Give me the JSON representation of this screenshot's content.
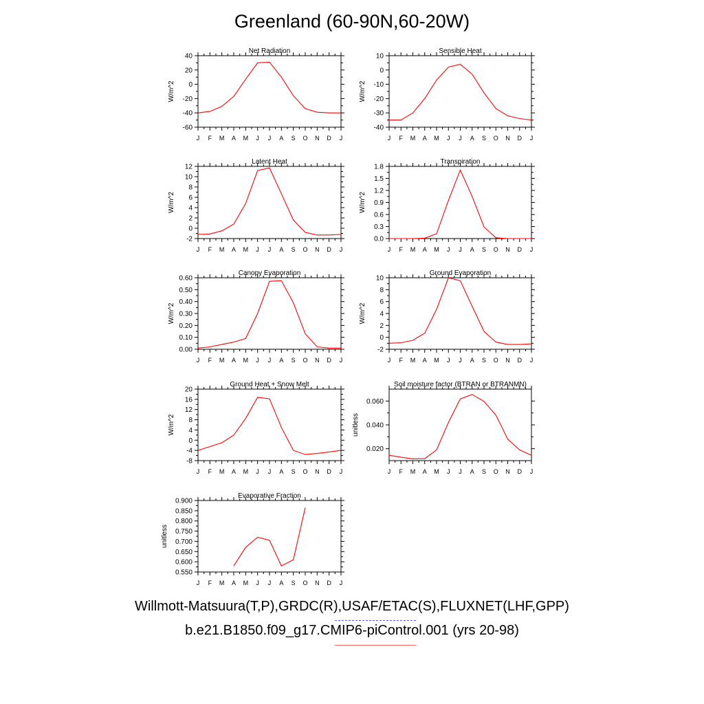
{
  "title": "Greenland (60-90N,60-20W)",
  "caption_obs": "Willmott-Matsuura(T,P),GRDC(R),USAF/ETAC(S),FLUXNET(LHF,GPP)",
  "caption_model": "b.e21.B1850.f09_g17.CMIP6-piControl.001 (yrs 20-98)",
  "colors": {
    "model_line": "#ff0000",
    "obs_line": "#5a5aff",
    "axis": "#000000"
  },
  "chart_data": [
    {
      "type": "line",
      "title": "Net Radiation",
      "ylabel": "W/m^2",
      "x": [
        "J",
        "F",
        "M",
        "A",
        "M",
        "J",
        "J",
        "A",
        "S",
        "O",
        "N",
        "D",
        "J"
      ],
      "ylim": [
        -60,
        40
      ],
      "yticks": [
        "40",
        "20",
        "0",
        "-20",
        "-40",
        "-60"
      ],
      "ytick_values": [
        40,
        20,
        0,
        -20,
        -40,
        -60
      ],
      "series": [
        {
          "values": [
            -40,
            -38,
            -31,
            -17,
            7,
            30,
            31,
            10,
            -16,
            -34,
            -39,
            -40,
            -40
          ]
        }
      ]
    },
    {
      "type": "line",
      "title": "Sensible Heat",
      "ylabel": "W/m^2",
      "x": [
        "J",
        "F",
        "M",
        "A",
        "M",
        "J",
        "J",
        "A",
        "S",
        "O",
        "N",
        "D",
        "J"
      ],
      "ylim": [
        -40,
        10
      ],
      "yticks": [
        "10",
        "0",
        "-10",
        "-20",
        "-30",
        "-40"
      ],
      "ytick_values": [
        10,
        0,
        -10,
        -20,
        -30,
        -40
      ],
      "series": [
        {
          "values": [
            -35,
            -35,
            -30,
            -20,
            -7,
            2,
            4,
            -3,
            -16,
            -27,
            -32,
            -34,
            -35
          ]
        }
      ]
    },
    {
      "type": "line",
      "title": "Latent Heat",
      "ylabel": "W/m^2",
      "x": [
        "J",
        "F",
        "M",
        "A",
        "M",
        "J",
        "J",
        "A",
        "S",
        "O",
        "N",
        "D",
        "J"
      ],
      "ylim": [
        -2,
        12
      ],
      "yticks": [
        "12",
        "10",
        "8",
        "6",
        "4",
        "2",
        "0",
        "-2"
      ],
      "ytick_values": [
        12,
        10,
        8,
        6,
        4,
        2,
        0,
        -2
      ],
      "series": [
        {
          "values": [
            -1.2,
            -1.1,
            -0.5,
            0.8,
            4.8,
            11.2,
            11.7,
            6.7,
            1.6,
            -0.8,
            -1.3,
            -1.3,
            -1.2
          ]
        }
      ]
    },
    {
      "type": "line",
      "title": "Transpiration",
      "ylabel": "W/m^2",
      "x": [
        "J",
        "F",
        "M",
        "A",
        "M",
        "J",
        "J",
        "A",
        "S",
        "O",
        "N",
        "D",
        "J"
      ],
      "ylim": [
        0,
        1.8
      ],
      "yticks": [
        "1.8",
        "1.5",
        "1.2",
        "0.9",
        "0.6",
        "0.3",
        "0.0"
      ],
      "ytick_values": [
        1.8,
        1.5,
        1.2,
        0.9,
        0.6,
        0.3,
        0.0
      ],
      "series": [
        {
          "values": [
            0,
            0,
            0,
            0.01,
            0.12,
            0.95,
            1.71,
            1.05,
            0.29,
            0.02,
            0,
            0,
            0
          ]
        }
      ]
    },
    {
      "type": "line",
      "title": "Canopy Evaporation",
      "ylabel": "W/m^2",
      "x": [
        "J",
        "F",
        "M",
        "A",
        "M",
        "J",
        "J",
        "A",
        "S",
        "O",
        "N",
        "D",
        "J"
      ],
      "ylim": [
        0,
        0.6
      ],
      "yticks": [
        "0.60",
        "0.50",
        "0.40",
        "0.30",
        "0.20",
        "0.10",
        "0.00"
      ],
      "ytick_values": [
        0.6,
        0.5,
        0.4,
        0.3,
        0.2,
        0.1,
        0.0
      ],
      "series": [
        {
          "values": [
            0.01,
            0.02,
            0.04,
            0.06,
            0.09,
            0.3,
            0.57,
            0.575,
            0.39,
            0.13,
            0.02,
            0.01,
            0.01
          ]
        }
      ]
    },
    {
      "type": "line",
      "title": "Ground Evaporation",
      "ylabel": "W/m^2",
      "x": [
        "J",
        "F",
        "M",
        "A",
        "M",
        "J",
        "J",
        "A",
        "S",
        "O",
        "N",
        "D",
        "J"
      ],
      "ylim": [
        -2,
        10
      ],
      "yticks": [
        "10",
        "8",
        "6",
        "4",
        "2",
        "0",
        "-2"
      ],
      "ytick_values": [
        10,
        8,
        6,
        4,
        2,
        0,
        -2
      ],
      "series": [
        {
          "values": [
            -1,
            -0.9,
            -0.5,
            0.7,
            4.7,
            10,
            9.5,
            5.2,
            1,
            -0.8,
            -1.2,
            -1.2,
            -1.1
          ]
        }
      ]
    },
    {
      "type": "line",
      "title": "Ground Heat + Snow Melt",
      "ylabel": "W/m^2",
      "x": [
        "J",
        "F",
        "M",
        "A",
        "M",
        "J",
        "J",
        "A",
        "S",
        "O",
        "N",
        "D",
        "J"
      ],
      "ylim": [
        -8,
        20
      ],
      "yticks": [
        "20",
        "16",
        "12",
        "8",
        "4",
        "0",
        "-4",
        "-8"
      ],
      "ytick_values": [
        20,
        16,
        12,
        8,
        4,
        0,
        -4,
        -8
      ],
      "series": [
        {
          "values": [
            -4,
            -2.5,
            -1,
            2,
            8.5,
            16.8,
            16.2,
            5,
            -4,
            -5.6,
            -5.2,
            -4.6,
            -4
          ]
        }
      ]
    },
    {
      "type": "line",
      "title": "Soil moisture factor (BTRAN or BTRANMN)",
      "ylabel": "unitless",
      "x": [
        "J",
        "F",
        "M",
        "A",
        "M",
        "J",
        "J",
        "A",
        "S",
        "O",
        "N",
        "D",
        "J"
      ],
      "ylim": [
        0.01,
        0.07
      ],
      "yticks": [
        "0.060",
        "0.040",
        "0.020"
      ],
      "ytick_values": [
        0.06,
        0.04,
        0.02
      ],
      "series": [
        {
          "values": [
            0.0145,
            0.0128,
            0.0115,
            0.0116,
            0.019,
            0.042,
            0.0618,
            0.0655,
            0.0597,
            0.0482,
            0.028,
            0.019,
            0.0145
          ]
        }
      ]
    },
    {
      "type": "line",
      "title": "Evaporative Fraction",
      "ylabel": "unitless",
      "x": [
        "J",
        "F",
        "M",
        "A",
        "M",
        "J",
        "J",
        "A",
        "S",
        "O",
        "N",
        "D",
        "J"
      ],
      "ylim": [
        0.55,
        0.9
      ],
      "yticks": [
        "0.900",
        "0.850",
        "0.800",
        "0.750",
        "0.700",
        "0.650",
        "0.600",
        "0.550"
      ],
      "ytick_values": [
        0.9,
        0.85,
        0.8,
        0.75,
        0.7,
        0.65,
        0.6,
        0.55
      ],
      "series": [
        {
          "values": [
            null,
            null,
            null,
            0.58,
            0.67,
            0.72,
            0.705,
            0.58,
            0.61,
            0.865,
            null,
            null,
            null
          ]
        }
      ]
    }
  ]
}
